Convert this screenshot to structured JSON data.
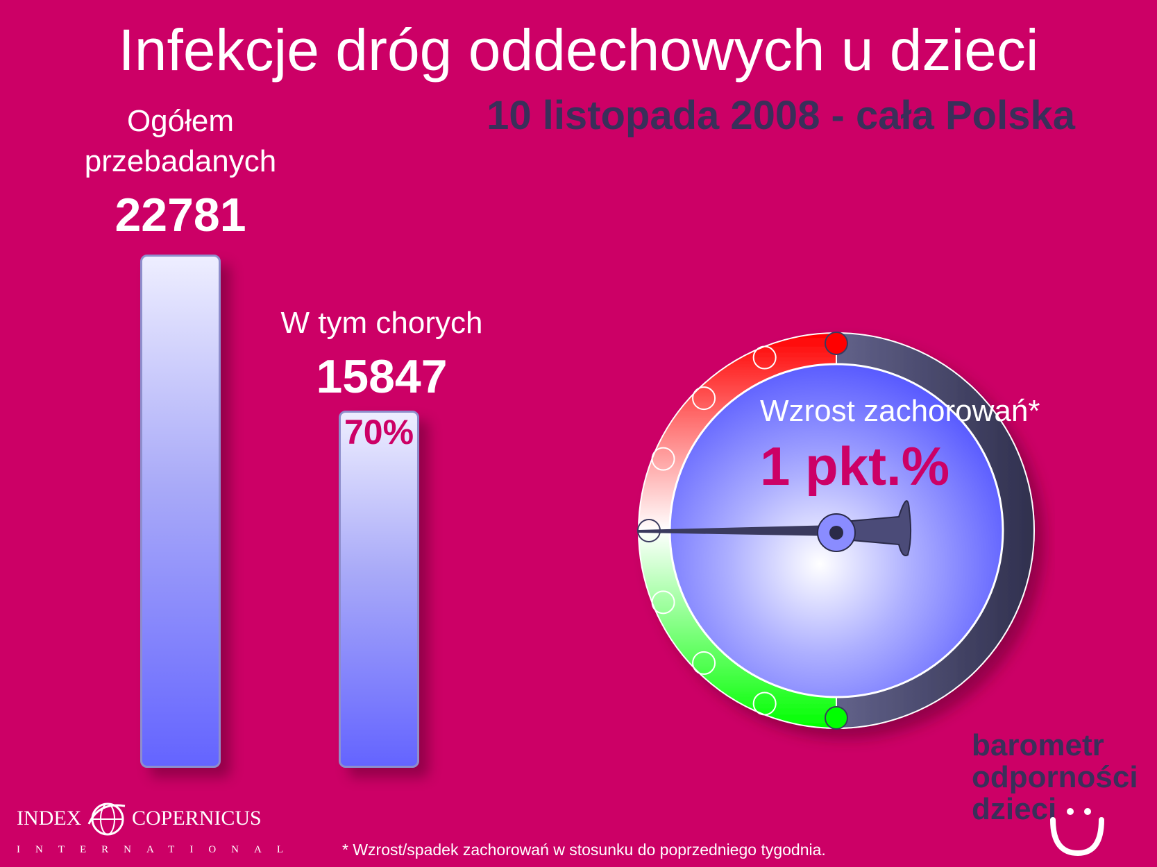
{
  "title": "Infekcje dróg oddechowych u dzieci",
  "subtitle": "10 listopada 2008 - cała Polska",
  "chart_data": [
    {
      "type": "bar",
      "categories": [
        "Ogółem przebadanych",
        "W tym chorych"
      ],
      "values": [
        22781,
        15847
      ],
      "data_labels": [
        "22781",
        "15847"
      ],
      "percent_label": "70%",
      "percent_value": 70
    },
    {
      "type": "gauge",
      "label": "Wzrost zachorowań*",
      "value_text": "1 pkt.%",
      "value": 1,
      "colors": {
        "top": "#ff0000",
        "bottom": "#00ff00",
        "face": "#6464ff",
        "rim": "#3a3a5e"
      }
    }
  ],
  "bars": {
    "total_label_line1": "Ogółem",
    "total_label_line2": "przebadanych",
    "total_value": "22781",
    "sick_label": "W tym chorych",
    "sick_value": "15847",
    "sick_percent": "70%"
  },
  "gauge": {
    "label": "Wzrost zachorowań*",
    "value": "1 pkt.%"
  },
  "logo": {
    "line1": "barometr",
    "line2": "odporności",
    "line3": "dzieci"
  },
  "brand": {
    "left": "INDEX",
    "right": "COPERNICUS",
    "sub": "INTERNATIONAL"
  },
  "footnote": "* Wzrost/spadek zachorowań w stosunku do poprzedniego tygodnia.",
  "colors": {
    "background": "#cc0066",
    "subtitle": "#3a2f5a",
    "bar_fill": "#6464ff"
  }
}
